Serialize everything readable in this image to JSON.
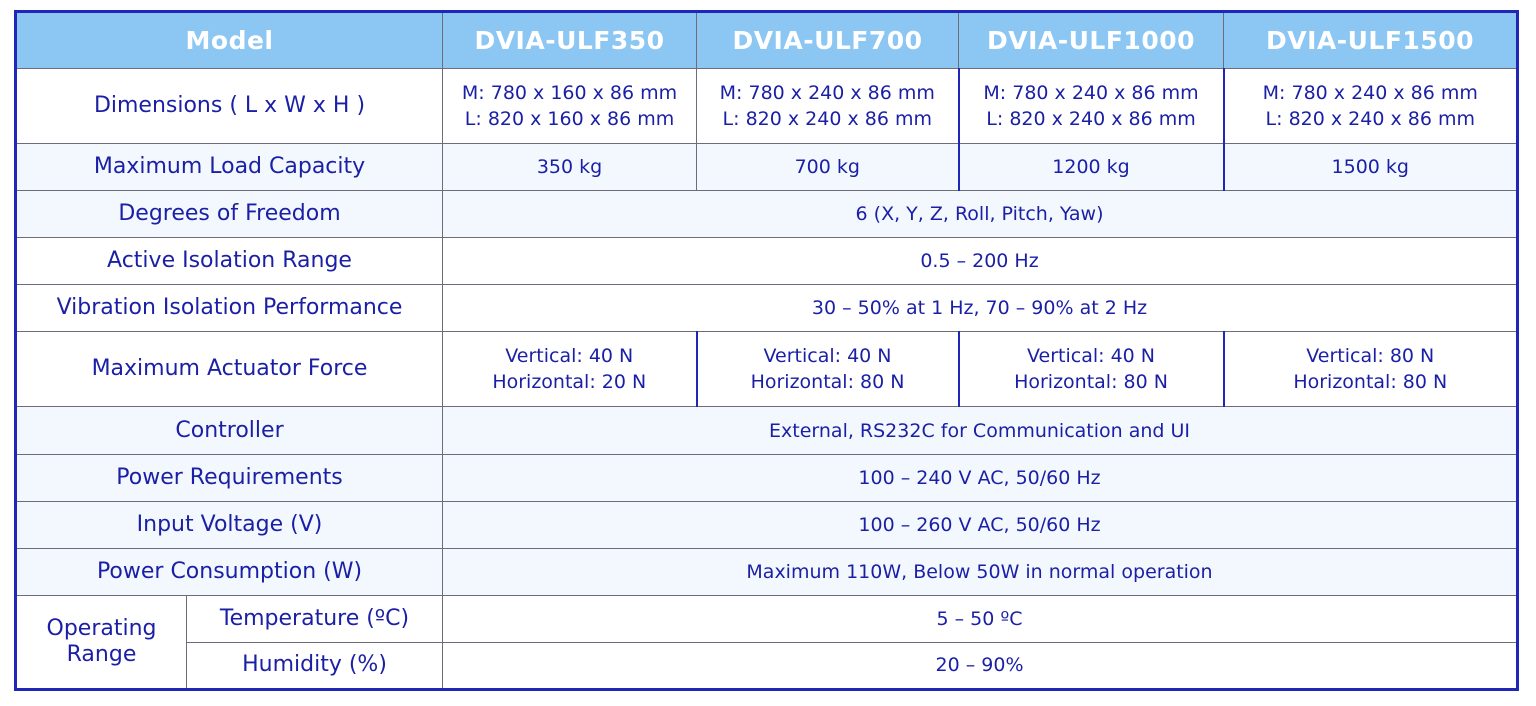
{
  "table": {
    "header": {
      "model_label": "Model",
      "models": [
        "DVIA-ULF350",
        "DVIA-ULF700",
        "DVIA-ULF1000",
        "DVIA-ULF1500"
      ]
    },
    "dimensions": {
      "label": "Dimensions ( L x W x H )",
      "values": [
        {
          "m": "M: 780 x 160 x 86 mm",
          "l": "L: 820 x 160 x 86 mm"
        },
        {
          "m": "M: 780 x 240 x 86 mm",
          "l": "L: 820 x 240 x 86 mm"
        },
        {
          "m": "M: 780 x 240 x 86 mm",
          "l": "L: 820 x 240 x 86 mm"
        },
        {
          "m": "M: 780 x 240 x 86 mm",
          "l": "L: 820 x 240 x 86 mm"
        }
      ]
    },
    "load_capacity": {
      "label": "Maximum Load Capacity",
      "values": [
        "350 kg",
        "700 kg",
        "1200 kg",
        "1500 kg"
      ]
    },
    "degrees_of_freedom": {
      "label": "Degrees of Freedom",
      "value": "6 (X, Y, Z, Roll, Pitch, Yaw)"
    },
    "isolation_range": {
      "label": "Active Isolation Range",
      "value": "0.5 – 200 Hz"
    },
    "isolation_performance": {
      "label": "Vibration Isolation Performance",
      "value": "30 – 50% at 1 Hz, 70 – 90% at 2 Hz"
    },
    "actuator_force": {
      "label": "Maximum Actuator Force",
      "values": [
        {
          "vertical": "Vertical: 40 N",
          "horizontal": "Horizontal: 20 N"
        },
        {
          "vertical": "Vertical: 40 N",
          "horizontal": "Horizontal: 80 N"
        },
        {
          "vertical": "Vertical: 40 N",
          "horizontal": "Horizontal: 80 N"
        },
        {
          "vertical": "Vertical: 80 N",
          "horizontal": "Horizontal: 80 N"
        }
      ]
    },
    "controller": {
      "label": "Controller",
      "value": "External, RS232C for Communication and UI"
    },
    "power_requirements": {
      "label": "Power Requirements",
      "value": "100 – 240 V AC, 50/60 Hz"
    },
    "input_voltage": {
      "label": "Input Voltage (V)",
      "value": "100 – 260 V AC, 50/60 Hz"
    },
    "power_consumption": {
      "label": "Power Consumption (W)",
      "value": "Maximum 110W, Below 50W in normal operation"
    },
    "operating_range": {
      "label_line1": "Operating",
      "label_line2": "Range",
      "temperature": {
        "label": "Temperature (ºC)",
        "value": "5 – 50 ºC"
      },
      "humidity": {
        "label": "Humidity (%)",
        "value": "20 – 90%"
      }
    }
  },
  "colors": {
    "header_bg": "#8cc6f3",
    "text_blue": "#1a1fa6",
    "border_blue": "#2027b8",
    "alt_row_bg": "#f2f8fd"
  }
}
